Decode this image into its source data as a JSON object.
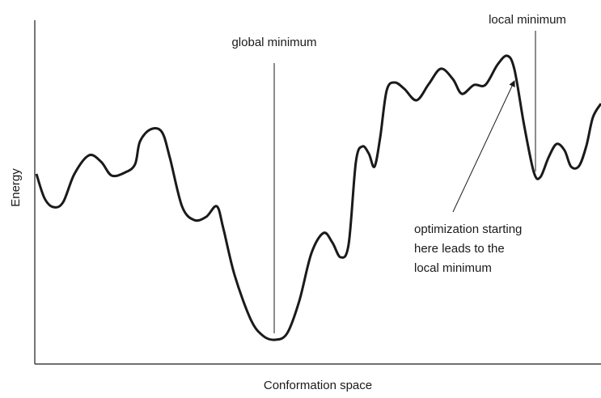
{
  "axes": {
    "y_label": "Energy",
    "x_label": "Conformation space"
  },
  "annotations": {
    "global_minimum": "global minimum",
    "local_minimum": "local minimum",
    "optimization_note": [
      "optimization starting",
      "here leads to the",
      "local minimum"
    ]
  }
}
